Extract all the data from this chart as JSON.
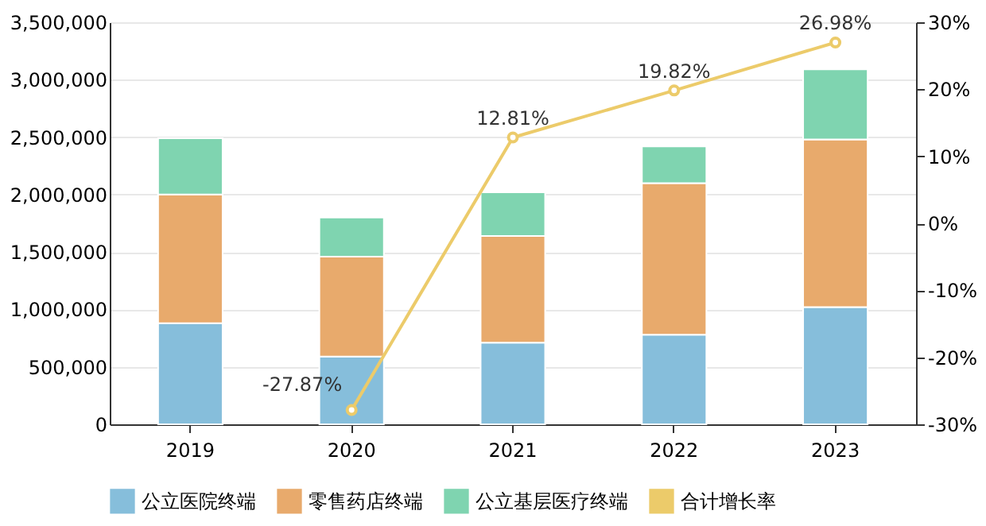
{
  "chart_data": {
    "type": "bar",
    "stacked": true,
    "categories": [
      "2019",
      "2020",
      "2021",
      "2022",
      "2023"
    ],
    "series": [
      {
        "name": "公立医院终端",
        "color": "#86bedb",
        "values": [
          880000,
          590000,
          710000,
          780000,
          1020000
        ]
      },
      {
        "name": "零售药店终端",
        "color": "#e8aa6c",
        "values": [
          1120000,
          870000,
          930000,
          1320000,
          1460000
        ]
      },
      {
        "name": "公立基层医疗终端",
        "color": "#7fd4b0",
        "values": [
          490000,
          340000,
          380000,
          320000,
          610000
        ]
      },
      {
        "name": "合计增长率",
        "type": "line",
        "axis": "y2",
        "color": "#eccb6a",
        "values": [
          null,
          -27.87,
          12.81,
          19.82,
          26.98
        ],
        "value_labels": [
          null,
          "-27.87%",
          "12.81%",
          "19.82%",
          "26.98%"
        ]
      }
    ],
    "ylim": [
      0,
      3500000
    ],
    "yticks": [
      0,
      {
        "value": 500000,
        "label": "500,000"
      },
      {
        "value": 1000000,
        "label": "1,000,000"
      },
      {
        "value": 1500000,
        "label": "1,500,000"
      },
      {
        "value": 2000000,
        "label": "2,000,000"
      },
      {
        "value": 2500000,
        "label": "2,500,000"
      },
      {
        "value": 3000000,
        "label": "3,000,000"
      },
      {
        "value": 3500000,
        "label": "3,500,000"
      }
    ],
    "y2lim": [
      -30,
      30
    ],
    "y2ticks": [
      {
        "value": -30,
        "label": "-30%"
      },
      {
        "value": -20,
        "label": "-20%"
      },
      {
        "value": -10,
        "label": "-10%"
      },
      {
        "value": 0,
        "label": "0%"
      },
      {
        "value": 10,
        "label": "10%"
      },
      {
        "value": 20,
        "label": "20%"
      },
      {
        "value": 30,
        "label": "30%"
      }
    ],
    "grid": "y",
    "legend": "bottom",
    "marker": "circle"
  }
}
